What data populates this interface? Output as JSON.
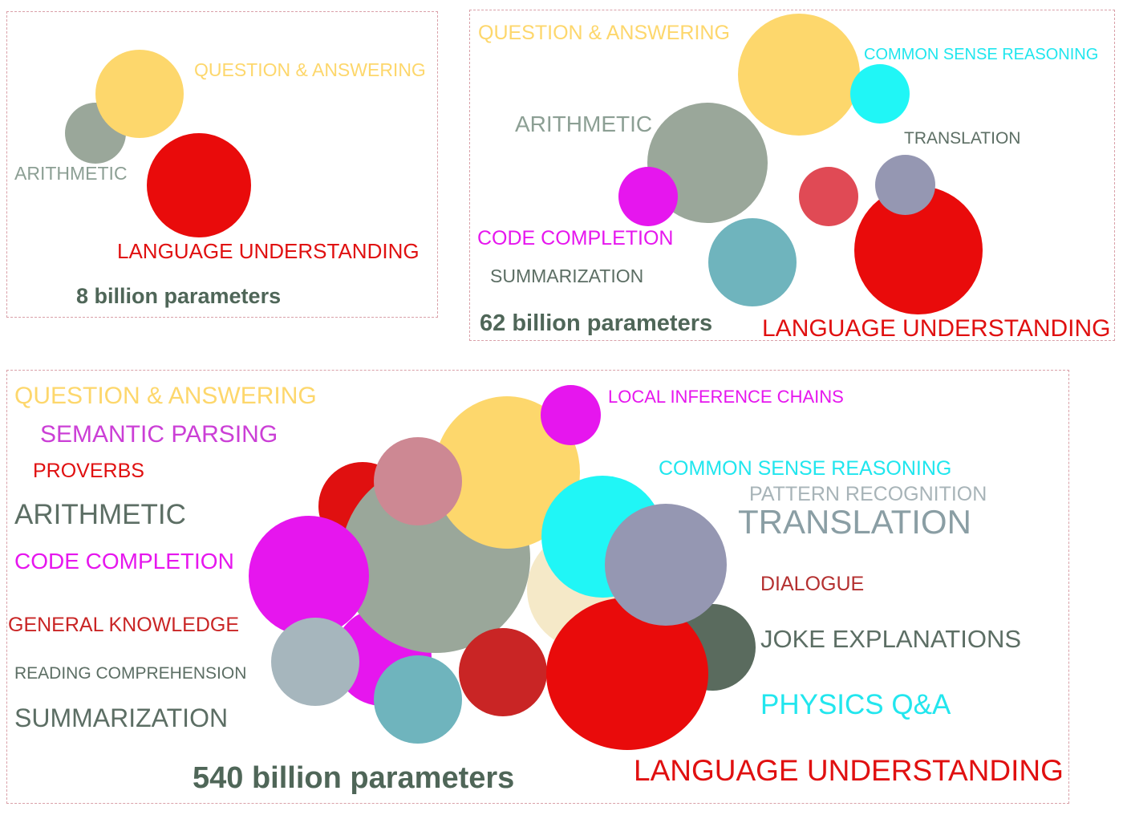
{
  "colors": {
    "question_answering": "#fdd76c",
    "arithmetic": "#9aa79a",
    "language_understanding": "#e90b0b",
    "common_sense_reasoning": "#20f6f6",
    "translation": "#9597b2",
    "code_completion": "#e616ee",
    "summarization": "#6fb4bd",
    "semantic_parsing": "#cb3fd6",
    "proverbs": "#e01010",
    "general_knowledge": "#c92525",
    "reading_comprehension": "#a6b6bd",
    "local_inference_chains": "#e616ee",
    "pattern_recognition": "#f5e9c8",
    "dialogue": "#b43030",
    "joke_explanations": "#5a6b5e",
    "physics_qa": "#22e6ee",
    "pink": "#cd8893",
    "light_red": "#e04a55",
    "caption": "#4f6658",
    "panel_border": "#d9a0a8"
  },
  "panel_8b": {
    "caption": "8 billion parameters",
    "labels": {
      "question_answering": "QUESTION & ANSWERING",
      "arithmetic": "ARITHMETIC",
      "language_understanding": "LANGUAGE UNDERSTANDING"
    }
  },
  "panel_62b": {
    "caption": "62 billion parameters",
    "labels": {
      "question_answering": "QUESTION & ANSWERING",
      "common_sense_reasoning": "COMMON SENSE REASONING",
      "arithmetic": "ARITHMETIC",
      "translation": "TRANSLATION",
      "code_completion": "CODE COMPLETION",
      "summarization": "SUMMARIZATION",
      "language_understanding": "LANGUAGE UNDERSTANDING"
    }
  },
  "panel_540b": {
    "caption": "540 billion parameters",
    "labels": {
      "question_answering": "QUESTION & ANSWERING",
      "semantic_parsing": "SEMANTIC PARSING",
      "proverbs": "PROVERBS",
      "arithmetic": "ARITHMETIC",
      "code_completion": "CODE COMPLETION",
      "general_knowledge": "GENERAL KNOWLEDGE",
      "reading_comprehension": "READING COMPREHENSION",
      "summarization": "SUMMARIZATION",
      "local_inference_chains": "LOCAL INFERENCE CHAINS",
      "common_sense_reasoning": "COMMON SENSE REASONING",
      "pattern_recognition": "PATTERN RECOGNITION",
      "translation": "TRANSLATION",
      "dialogue": "DIALOGUE",
      "joke_explanations": "JOKE EXPLANATIONS",
      "physics_qa": "PHYSICS Q&A",
      "language_understanding": "LANGUAGE UNDERSTANDING"
    }
  }
}
